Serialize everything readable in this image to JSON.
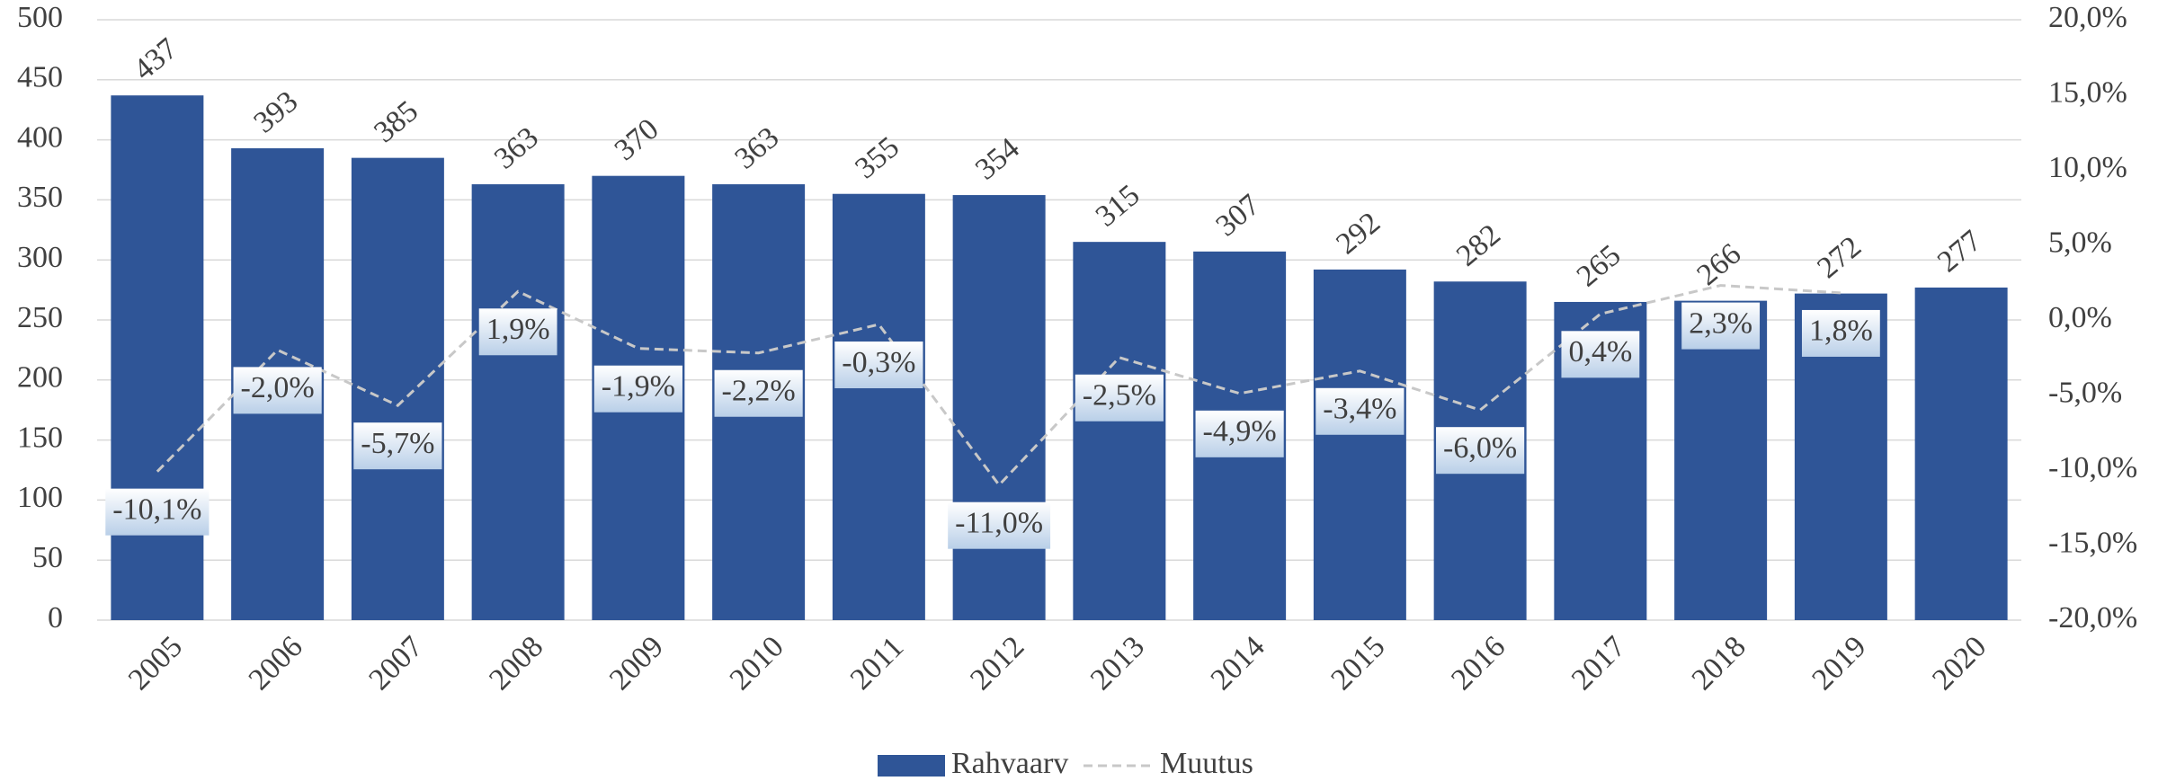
{
  "chart_data": {
    "type": "bar-line",
    "categories": [
      "2005",
      "2006",
      "2007",
      "2008",
      "2009",
      "2010",
      "2011",
      "2012",
      "2013",
      "2014",
      "2015",
      "2016",
      "2017",
      "2018",
      "2019",
      "2020"
    ],
    "series": [
      {
        "name": "Rahvaarv",
        "color": "#2f5597",
        "values": [
          437,
          393,
          385,
          363,
          370,
          363,
          355,
          354,
          315,
          307,
          292,
          282,
          265,
          266,
          272,
          277
        ]
      },
      {
        "name": "Muutus",
        "color": "#c8c8c8",
        "axis": "y2",
        "values": [
          -10.1,
          -2.0,
          -5.7,
          1.9,
          -1.9,
          -2.2,
          -0.3,
          -11.0,
          -2.5,
          -4.9,
          -3.4,
          -6.0,
          0.4,
          2.3,
          1.8,
          null
        ],
        "value_labels": [
          "-10,1%",
          "-2,0%",
          "-5,7%",
          "1,9%",
          "-1,9%",
          "-2,2%",
          "-0,3%",
          "-11,0%",
          "-2,5%",
          "-4,9%",
          "-3,4%",
          "-6,0%",
          "0,4%",
          "2,3%",
          "1,8%",
          null
        ]
      }
    ],
    "ylim": [
      0,
      500
    ],
    "yticks": [
      0,
      50,
      100,
      150,
      200,
      250,
      300,
      350,
      400,
      450,
      500
    ],
    "y2lim": [
      -20,
      20
    ],
    "y2ticks": [
      {
        "value": -20,
        "label": "-20,0%"
      },
      {
        "value": -15,
        "label": "-15,0%"
      },
      {
        "value": -10,
        "label": "-10,0%"
      },
      {
        "value": -5,
        "label": "-5,0%"
      },
      {
        "value": 0,
        "label": "0,0%"
      },
      {
        "value": 5,
        "label": "5,0%"
      },
      {
        "value": 10,
        "label": "10,0%"
      },
      {
        "value": 15,
        "label": "15,0%"
      },
      {
        "value": 20,
        "label": "20,0%"
      }
    ],
    "grid": true,
    "legend": "bottom"
  }
}
